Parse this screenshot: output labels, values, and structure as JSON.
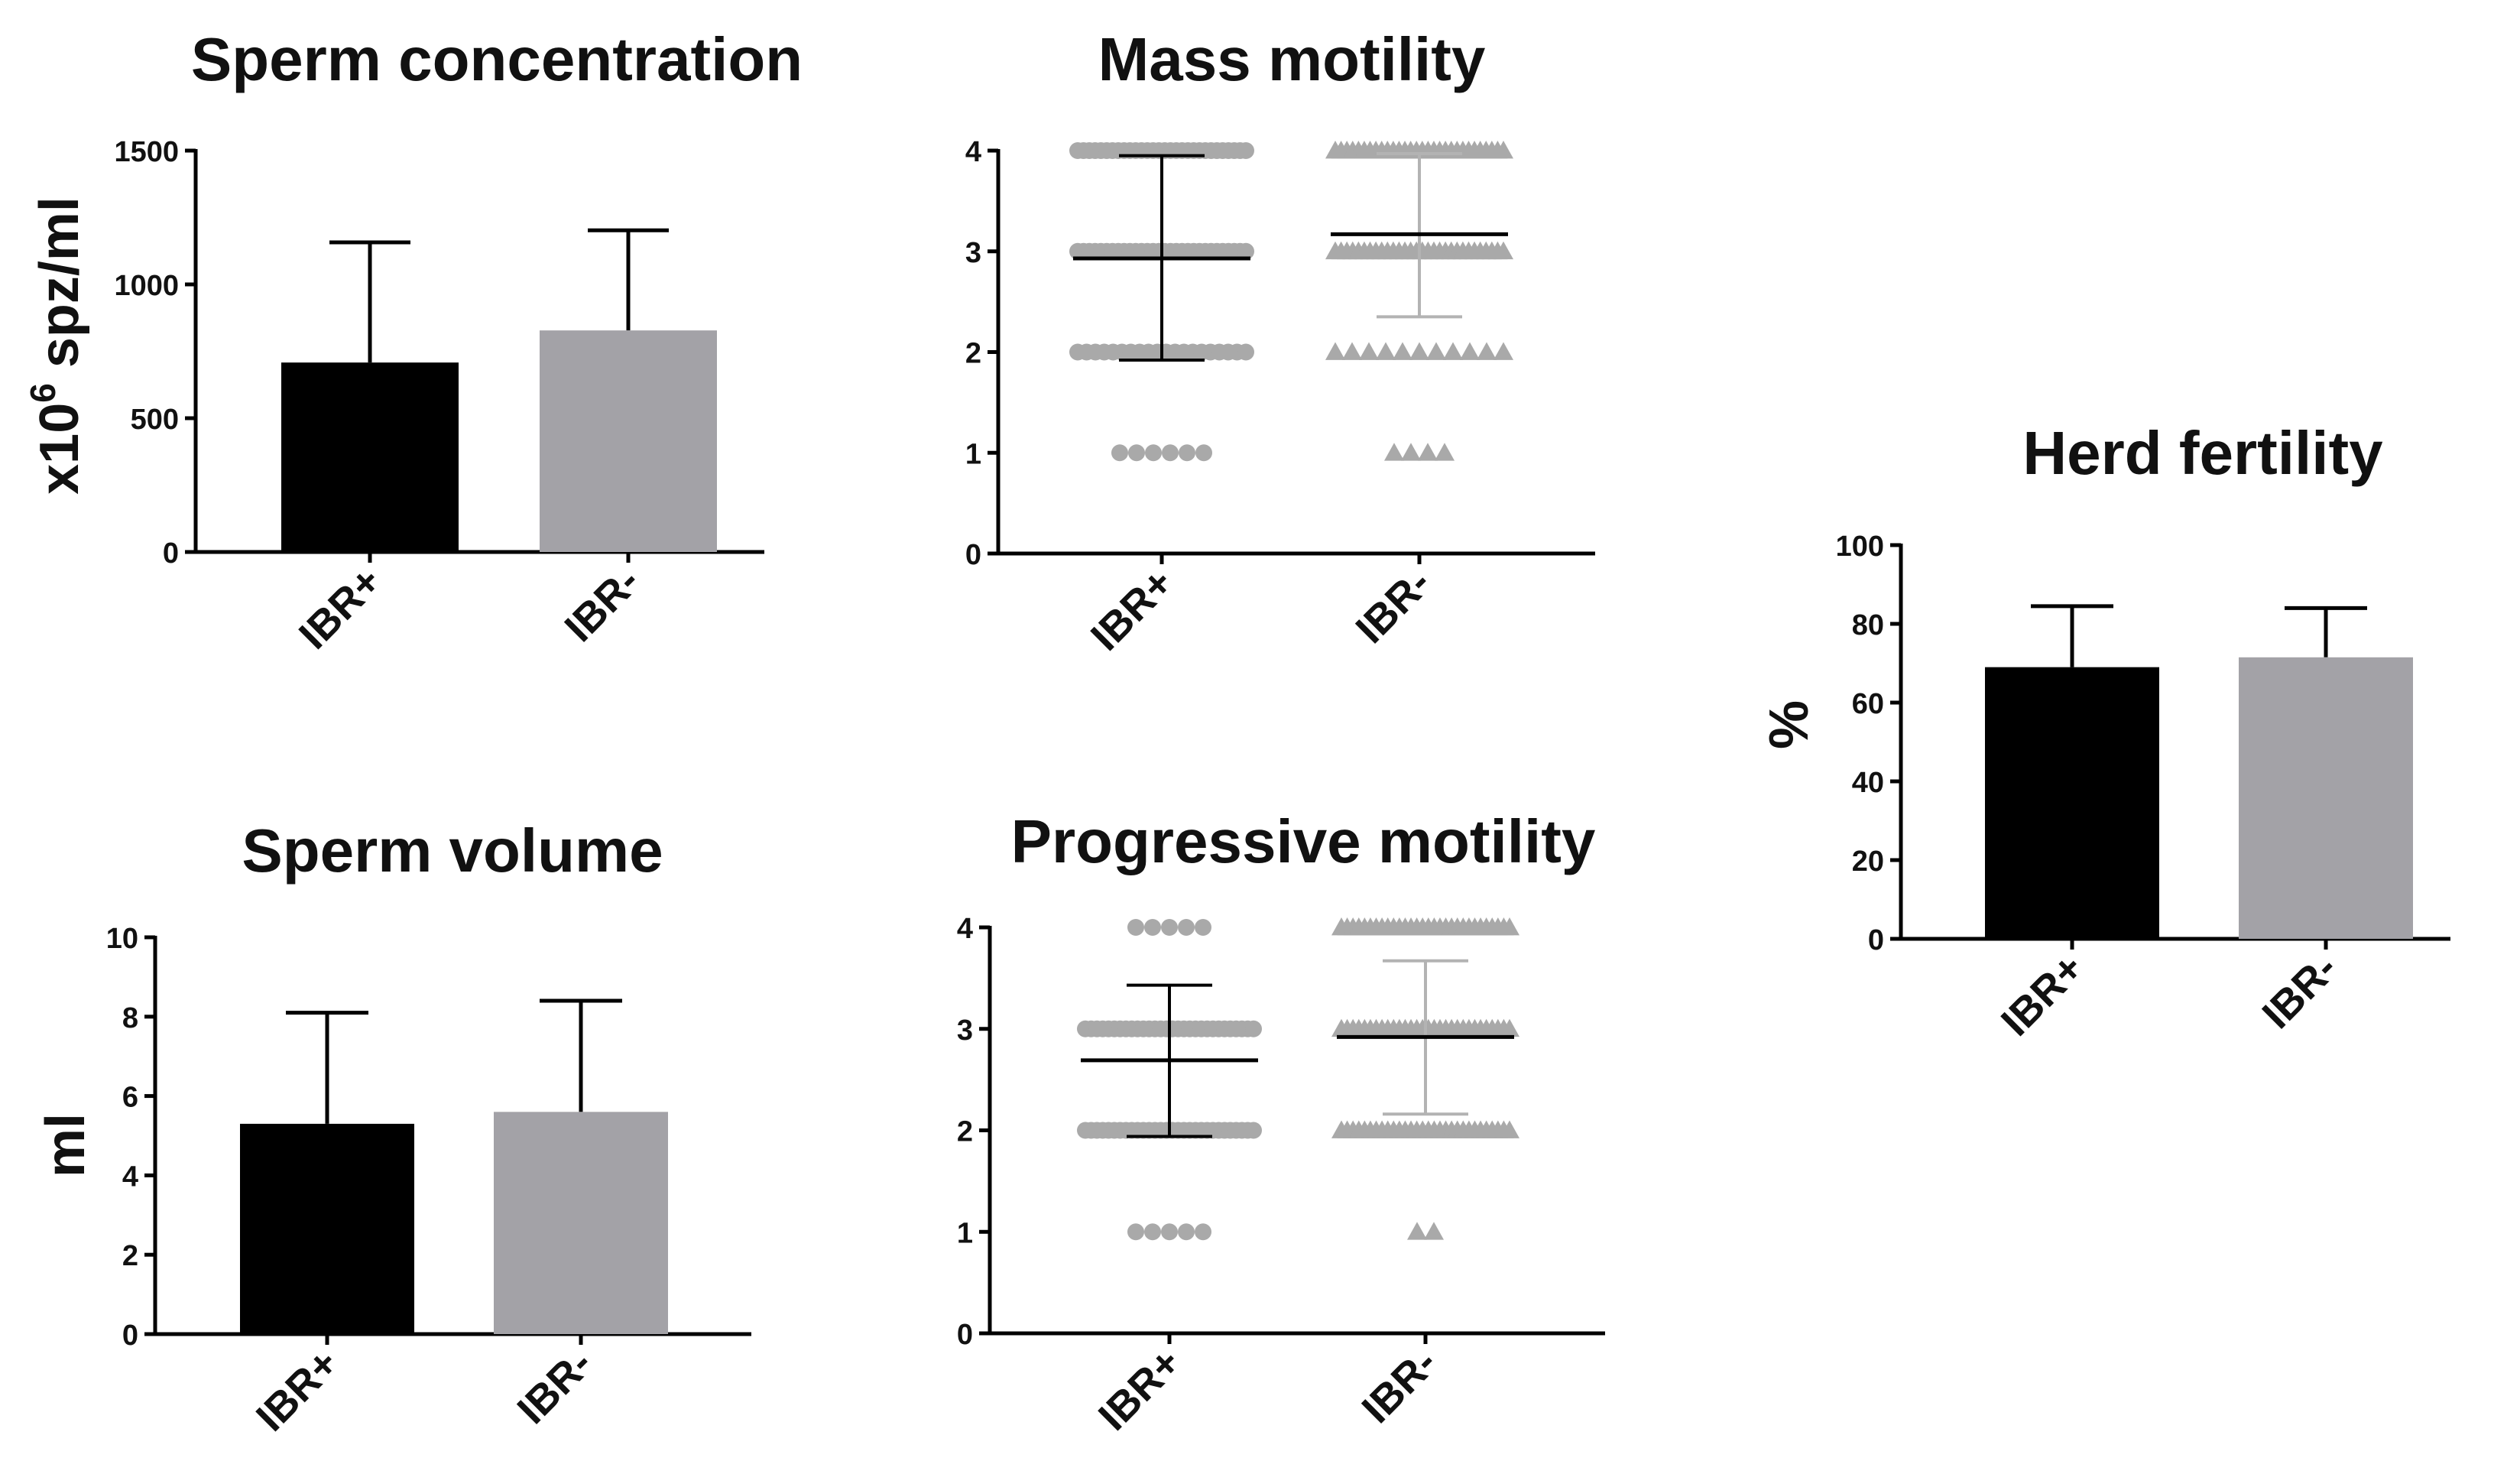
{
  "colors": {
    "ibr_pos": "#000000",
    "ibr_neg": "#a3a2a7",
    "dot": "#a9a9a9",
    "axis": "#000000"
  },
  "charts": {
    "sperm_concentration": {
      "type": "bar",
      "title": "Sperm concentration",
      "ylabel_main": "x10",
      "ylabel_sup": "6",
      "ylabel_rest": " spz/ml",
      "categories": [
        "IBR+",
        "IBR-"
      ],
      "values": [
        708,
        828
      ],
      "errors_upper": [
        1157,
        1202
      ],
      "ylim": [
        0,
        1500
      ],
      "ticks": [
        "0",
        "500",
        "1000",
        "1500"
      ]
    },
    "mass_motility": {
      "type": "scatter",
      "title": "Mass motility",
      "ylabel": "",
      "categories": [
        "IBR+",
        "IBR-"
      ],
      "markers": [
        "circle",
        "triangle"
      ],
      "points": [
        [
          {
            "y": 4,
            "n": 30
          },
          {
            "y": 3,
            "n": 30
          },
          {
            "y": 2,
            "n": 20
          },
          {
            "y": 1,
            "n": 6
          }
        ],
        [
          {
            "y": 4,
            "n": 30
          },
          {
            "y": 3,
            "n": 30
          },
          {
            "y": 2,
            "n": 11
          },
          {
            "y": 1,
            "n": 4
          }
        ]
      ],
      "mean": [
        2.93,
        3.17
      ],
      "sd_upper": [
        3.95,
        3.97
      ],
      "sd_lower": [
        1.92,
        2.35
      ],
      "ylim": [
        0,
        4
      ],
      "ticks": [
        "0",
        "1",
        "2",
        "3",
        "4"
      ]
    },
    "herd_fertility": {
      "type": "bar",
      "title": "Herd fertility",
      "ylabel": "%",
      "categories": [
        "IBR+",
        "IBR-"
      ],
      "values": [
        69,
        71.5
      ],
      "errors_upper": [
        84.5,
        84
      ],
      "ylim": [
        0,
        100
      ],
      "ticks": [
        "0",
        "20",
        "40",
        "60",
        "80",
        "100"
      ]
    },
    "sperm_volume": {
      "type": "bar",
      "title": "Sperm volume",
      "ylabel": "ml",
      "categories": [
        "IBR+",
        "IBR-"
      ],
      "values": [
        5.3,
        5.6
      ],
      "errors_upper": [
        8.1,
        8.4
      ],
      "ylim": [
        0,
        10
      ],
      "ticks": [
        "0",
        "2",
        "4",
        "6",
        "8",
        "10"
      ]
    },
    "progressive_motility": {
      "type": "scatter",
      "title": "Progressive motility",
      "ylabel": "",
      "categories": [
        "IBR+",
        "IBR-"
      ],
      "markers": [
        "circle",
        "triangle"
      ],
      "points": [
        [
          {
            "y": 4,
            "n": 5
          },
          {
            "y": 3,
            "n": 30
          },
          {
            "y": 2,
            "n": 30
          },
          {
            "y": 1,
            "n": 5
          }
        ],
        [
          {
            "y": 4,
            "n": 30
          },
          {
            "y": 3,
            "n": 30
          },
          {
            "y": 2,
            "n": 30
          },
          {
            "y": 1,
            "n": 2
          }
        ]
      ],
      "mean": [
        2.69,
        2.92
      ],
      "sd_upper": [
        3.43,
        3.67
      ],
      "sd_lower": [
        1.94,
        2.16
      ],
      "ylim": [
        0,
        4
      ],
      "ticks": [
        "0",
        "1",
        "2",
        "3",
        "4"
      ]
    }
  }
}
